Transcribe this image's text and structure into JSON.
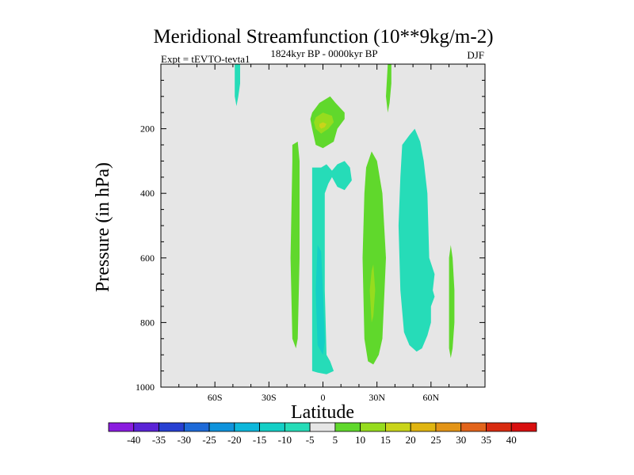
{
  "chart_data": {
    "type": "contour",
    "title": "Meridional Streamfunction (10**9kg/m-2)",
    "subtitle": "1824kyr BP - 0000kyr BP",
    "experiment_label": "Expt = tEVTO-tevta1",
    "season": "DJF",
    "xlabel": "Latitude",
    "ylabel": "Pressure (in hPa)",
    "xlim": [
      -90,
      90
    ],
    "ylim": [
      1000,
      0
    ],
    "y_inverted": true,
    "x_ticks": [
      {
        "value": -60,
        "label": "60S"
      },
      {
        "value": -30,
        "label": "30S"
      },
      {
        "value": 0,
        "label": "0"
      },
      {
        "value": 30,
        "label": "30N"
      },
      {
        "value": 60,
        "label": "60N"
      }
    ],
    "y_ticks": [
      {
        "value": 200,
        "label": "200"
      },
      {
        "value": 400,
        "label": "400"
      },
      {
        "value": 600,
        "label": "600"
      },
      {
        "value": 800,
        "label": "800"
      },
      {
        "value": 1000,
        "label": "1000"
      }
    ],
    "background_color": "#e6e6e6",
    "colorbar": {
      "levels": [
        "-40",
        "-35",
        "-30",
        "-25",
        "-20",
        "-15",
        "-10",
        "-5",
        "5",
        "10",
        "15",
        "20",
        "25",
        "30",
        "35",
        "40"
      ],
      "colors": [
        "#8a1cdf",
        "#5a23d6",
        "#2740d2",
        "#1e6ad8",
        "#0f93dc",
        "#0db7db",
        "#14cfc6",
        "#26dcb8",
        "#e6e6e6",
        "#60d82c",
        "#96dc1e",
        "#c9d41a",
        "#e0b511",
        "#e39417",
        "#e2641b",
        "#d82b10",
        "#d80f0f"
      ]
    },
    "regions": [
      {
        "name": "neg-5-to-10-southern-upper",
        "class": -1,
        "points": [
          [
            -49,
            0
          ],
          [
            -46,
            0
          ],
          [
            -46,
            60
          ],
          [
            -47,
            100
          ],
          [
            -48,
            130
          ],
          [
            -49,
            100
          ],
          [
            -49,
            0
          ]
        ]
      },
      {
        "name": "pos-5-to-10-northern-upper",
        "class": 1,
        "points": [
          [
            36,
            0
          ],
          [
            38,
            0
          ],
          [
            38,
            60
          ],
          [
            37,
            120
          ],
          [
            36,
            150
          ],
          [
            35,
            100
          ],
          [
            36,
            0
          ]
        ]
      },
      {
        "name": "pos-5-to-10-upper-blob",
        "class": 1,
        "points": [
          [
            -6,
            150
          ],
          [
            -2,
            120
          ],
          [
            4,
            100
          ],
          [
            7,
            120
          ],
          [
            12,
            150
          ],
          [
            12,
            170
          ],
          [
            8,
            200
          ],
          [
            6,
            240
          ],
          [
            0,
            260
          ],
          [
            -4,
            250
          ],
          [
            -6,
            200
          ],
          [
            -7,
            170
          ],
          [
            -6,
            150
          ]
        ]
      },
      {
        "name": "pos-10-to-15-upper-core",
        "class": 2,
        "points": [
          [
            -4,
            165
          ],
          [
            0,
            150
          ],
          [
            5,
            160
          ],
          [
            6,
            180
          ],
          [
            3,
            200
          ],
          [
            -1,
            215
          ],
          [
            -4,
            200
          ],
          [
            -5,
            180
          ],
          [
            -4,
            165
          ]
        ]
      },
      {
        "name": "pos-15-to-20-upper-center",
        "class": 3,
        "points": [
          [
            -2,
            185
          ],
          [
            0,
            180
          ],
          [
            2,
            185
          ],
          [
            1,
            195
          ],
          [
            -1,
            200
          ],
          [
            -2,
            193
          ],
          [
            -2,
            185
          ]
        ]
      },
      {
        "name": "pos-5-to-10-southern-column",
        "class": 1,
        "points": [
          [
            -17,
            250
          ],
          [
            -14,
            240
          ],
          [
            -13,
            300
          ],
          [
            -13,
            600
          ],
          [
            -14,
            850
          ],
          [
            -15,
            880
          ],
          [
            -17,
            850
          ],
          [
            -18,
            600
          ],
          [
            -17,
            300
          ],
          [
            -17,
            250
          ]
        ]
      },
      {
        "name": "neg-5-to-10-equatorial-column",
        "class": -1,
        "points": [
          [
            -6,
            320
          ],
          [
            -1,
            320
          ],
          [
            2,
            310
          ],
          [
            5,
            330
          ],
          [
            8,
            310
          ],
          [
            12,
            300
          ],
          [
            15,
            320
          ],
          [
            16,
            360
          ],
          [
            12,
            390
          ],
          [
            8,
            380
          ],
          [
            5,
            350
          ],
          [
            3,
            370
          ],
          [
            1,
            400
          ],
          [
            1,
            700
          ],
          [
            2,
            900
          ],
          [
            4,
            920
          ],
          [
            6,
            950
          ],
          [
            2,
            960
          ],
          [
            -3,
            955
          ],
          [
            -6,
            950
          ],
          [
            -6,
            700
          ],
          [
            -6,
            400
          ],
          [
            -6,
            320
          ]
        ]
      },
      {
        "name": "neg-10-to-15-equatorial-core",
        "class": -2,
        "points": [
          [
            -3,
            560
          ],
          [
            -1,
            580
          ],
          [
            0,
            700
          ],
          [
            1,
            860
          ],
          [
            0,
            900
          ],
          [
            -3,
            870
          ],
          [
            -4,
            700
          ],
          [
            -3,
            560
          ]
        ]
      },
      {
        "name": "pos-5-to-10-northern-column",
        "class": 1,
        "points": [
          [
            24,
            320
          ],
          [
            27,
            270
          ],
          [
            30,
            300
          ],
          [
            33,
            400
          ],
          [
            35,
            600
          ],
          [
            33,
            850
          ],
          [
            31,
            900
          ],
          [
            28,
            930
          ],
          [
            25,
            920
          ],
          [
            23,
            850
          ],
          [
            22,
            600
          ],
          [
            23,
            400
          ],
          [
            24,
            320
          ]
        ]
      },
      {
        "name": "pos-10-to-15-northern-core",
        "class": 2,
        "points": [
          [
            27,
            640
          ],
          [
            28,
            620
          ],
          [
            29,
            700
          ],
          [
            28,
            780
          ],
          [
            27,
            800
          ],
          [
            26,
            700
          ],
          [
            27,
            640
          ]
        ]
      },
      {
        "name": "neg-5-to-10-northern-column",
        "class": -1,
        "points": [
          [
            44,
            250
          ],
          [
            48,
            220
          ],
          [
            51,
            200
          ],
          [
            54,
            240
          ],
          [
            56,
            300
          ],
          [
            58,
            400
          ],
          [
            59,
            600
          ],
          [
            62,
            650
          ],
          [
            61,
            700
          ],
          [
            62,
            720
          ],
          [
            60,
            750
          ],
          [
            60,
            800
          ],
          [
            58,
            840
          ],
          [
            55,
            880
          ],
          [
            52,
            890
          ],
          [
            48,
            870
          ],
          [
            45,
            830
          ],
          [
            43,
            700
          ],
          [
            42,
            500
          ],
          [
            43,
            350
          ],
          [
            44,
            250
          ]
        ]
      },
      {
        "name": "pos-5-to-10-far-northern-sliver",
        "class": 1,
        "points": [
          [
            71,
            560
          ],
          [
            72,
            600
          ],
          [
            73,
            700
          ],
          [
            73,
            800
          ],
          [
            72,
            880
          ],
          [
            71,
            910
          ],
          [
            70,
            880
          ],
          [
            70,
            700
          ],
          [
            70,
            600
          ],
          [
            71,
            560
          ]
        ]
      }
    ]
  }
}
